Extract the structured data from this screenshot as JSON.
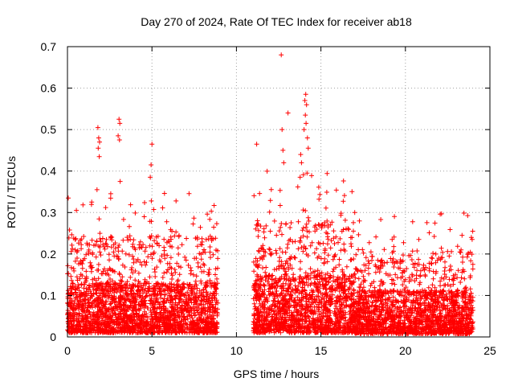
{
  "chart_data": {
    "type": "scatter",
    "title": "Day 270 of 2024, Rate Of TEC Index for receiver ab18",
    "xlabel": "GPS time / hours",
    "ylabel": "ROTI / TECUs",
    "xlim": [
      0,
      25
    ],
    "ylim": [
      0,
      0.7
    ],
    "x_ticks": [
      0,
      5,
      10,
      15,
      20,
      25
    ],
    "x_tick_labels": [
      "0",
      "5",
      "10",
      "15",
      "20",
      "25"
    ],
    "y_ticks": [
      0,
      0.1,
      0.2,
      0.3,
      0.4,
      0.5,
      0.6,
      0.7
    ],
    "y_tick_labels": [
      "0",
      "0.1",
      "0.2",
      "0.3",
      "0.4",
      "0.5",
      "0.6",
      "0.7"
    ],
    "grid": true,
    "marker": "+",
    "series": [
      {
        "name": "ROTI",
        "color": "#ff0000",
        "segments": [
          {
            "x_range": [
              0.0,
              8.9
            ],
            "base_max": 0.12,
            "burst_max": 0.3
          },
          {
            "x_range": [
              11.0,
              24.0
            ],
            "base_max": 0.14,
            "burst_max": 0.35
          }
        ],
        "outliers": [
          {
            "x": 1.8,
            "y": 0.505
          },
          {
            "x": 1.85,
            "y": 0.48
          },
          {
            "x": 1.9,
            "y": 0.47
          },
          {
            "x": 1.82,
            "y": 0.455
          },
          {
            "x": 1.88,
            "y": 0.435
          },
          {
            "x": 1.75,
            "y": 0.355
          },
          {
            "x": 3.05,
            "y": 0.525
          },
          {
            "x": 3.1,
            "y": 0.515
          },
          {
            "x": 3.0,
            "y": 0.485
          },
          {
            "x": 3.08,
            "y": 0.475
          },
          {
            "x": 3.12,
            "y": 0.375
          },
          {
            "x": 5.0,
            "y": 0.465
          },
          {
            "x": 4.95,
            "y": 0.415
          },
          {
            "x": 4.9,
            "y": 0.385
          },
          {
            "x": 11.2,
            "y": 0.465
          },
          {
            "x": 12.65,
            "y": 0.68
          },
          {
            "x": 12.7,
            "y": 0.5
          },
          {
            "x": 12.75,
            "y": 0.45
          },
          {
            "x": 12.8,
            "y": 0.42
          },
          {
            "x": 13.05,
            "y": 0.54
          },
          {
            "x": 13.8,
            "y": 0.44
          },
          {
            "x": 13.85,
            "y": 0.42
          },
          {
            "x": 14.0,
            "y": 0.5
          },
          {
            "x": 14.05,
            "y": 0.57
          },
          {
            "x": 14.1,
            "y": 0.585
          },
          {
            "x": 14.15,
            "y": 0.56
          },
          {
            "x": 14.08,
            "y": 0.535
          },
          {
            "x": 14.12,
            "y": 0.515
          },
          {
            "x": 14.2,
            "y": 0.48
          },
          {
            "x": 14.25,
            "y": 0.455
          },
          {
            "x": 14.18,
            "y": 0.395
          },
          {
            "x": 17.0,
            "y": 0.3
          },
          {
            "x": 21.8,
            "y": 0.2
          },
          {
            "x": 23.35,
            "y": 0.245
          },
          {
            "x": 23.9,
            "y": 0.24
          },
          {
            "x": 23.95,
            "y": 0.235
          }
        ]
      }
    ]
  }
}
